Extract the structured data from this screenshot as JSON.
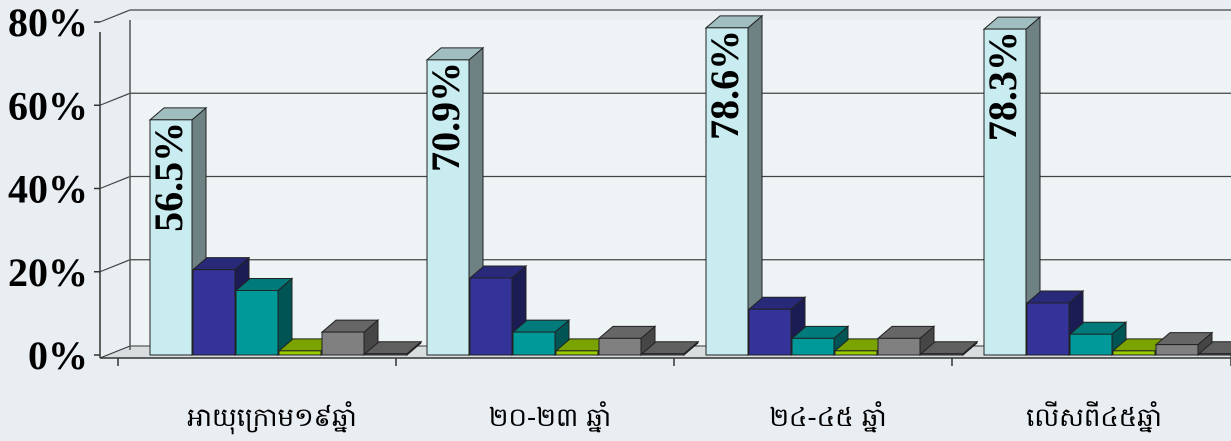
{
  "chart_data": {
    "type": "bar",
    "categories": [
      "អាយុក្រោម១៩ឆ្នាំ",
      "២០-២៣ ឆ្នាំ",
      "២៤-៤៥ ឆ្នាំ",
      "លើសពី៤៥ឆ្នាំ"
    ],
    "series": [
      {
        "values": [
          56.5,
          70.9,
          78.6,
          78.3
        ],
        "color": "#c8ecef"
      },
      {
        "values": [
          20.5,
          18.5,
          11.0,
          12.5
        ],
        "color": "#333399"
      },
      {
        "values": [
          15.5,
          5.5,
          4.0,
          5.0
        ],
        "color": "#009999"
      },
      {
        "values": [
          1.0,
          1.0,
          1.0,
          1.0
        ],
        "color": "#99cc00"
      },
      {
        "values": [
          5.5,
          4.0,
          4.0,
          2.5
        ],
        "color": "#808080"
      },
      {
        "values": [
          0.3,
          0.3,
          0.3,
          0.3
        ],
        "color": "#777777"
      }
    ],
    "data_labels": [
      "56.5%",
      "70.9%",
      "78.6%",
      "78.3%"
    ],
    "y_ticks": [
      "0%",
      "20%",
      "40%",
      "60%",
      "80%"
    ],
    "ylim": [
      0,
      80
    ],
    "grid": true
  }
}
